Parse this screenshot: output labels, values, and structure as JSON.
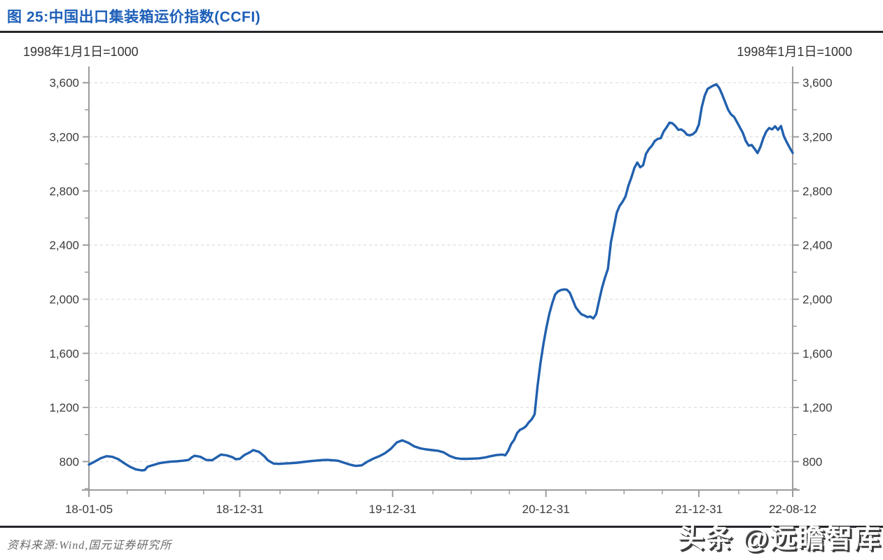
{
  "header": {
    "title": "图 25:中国出口集装箱运价指数(CCFI)"
  },
  "chart": {
    "base_note_left": "1998年1月1日=1000",
    "base_note_right": "1998年1月1日=1000"
  },
  "footer": {
    "source": "资料来源:Wind,国元证券研究所"
  },
  "watermark": {
    "text": "头条 @远瞻智库"
  },
  "chart_data": {
    "type": "line",
    "title": "中国出口集装箱运价指数(CCFI)",
    "unit_note": "1998年1月1日=1000",
    "grid": "horizontal-dashed",
    "legend": "none",
    "colors": {
      "line": "#2160ae",
      "axis": "#9c9c9c",
      "grid": "#dcdcdc",
      "tick_text": "#3c3c3c"
    },
    "ylim": [
      590,
      3720
    ],
    "y_ticks": {
      "values": [
        800,
        1200,
        1600,
        2000,
        2400,
        2800,
        3200,
        3600
      ],
      "labels": [
        "800",
        "1,200",
        "1,600",
        "2,000",
        "2,400",
        "2,800",
        "3,200",
        "3,600"
      ]
    },
    "y_minor_ticks": [
      600,
      1000,
      1400,
      1800,
      2200,
      2600,
      3000,
      3400
    ],
    "x_ticks": [
      {
        "date": "2018-01-05",
        "label": "18-01-05"
      },
      {
        "date": "2018-12-31",
        "label": "18-12-31"
      },
      {
        "date": "2019-12-31",
        "label": "19-12-31"
      },
      {
        "date": "2020-12-31",
        "label": "20-12-31"
      },
      {
        "date": "2021-12-31",
        "label": "21-12-31"
      },
      {
        "date": "2022-08-12",
        "label": "22-08-12"
      }
    ],
    "series": [
      {
        "name": "CCFI",
        "color": "#2160ae",
        "points": [
          [
            "2018-01-05",
            778
          ],
          [
            "2018-01-19",
            800
          ],
          [
            "2018-02-02",
            825
          ],
          [
            "2018-02-16",
            840
          ],
          [
            "2018-03-02",
            835
          ],
          [
            "2018-03-16",
            818
          ],
          [
            "2018-03-30",
            788
          ],
          [
            "2018-04-13",
            762
          ],
          [
            "2018-04-27",
            742
          ],
          [
            "2018-05-11",
            735
          ],
          [
            "2018-05-18",
            737
          ],
          [
            "2018-05-25",
            762
          ],
          [
            "2018-06-08",
            775
          ],
          [
            "2018-06-22",
            788
          ],
          [
            "2018-07-06",
            795
          ],
          [
            "2018-07-20",
            800
          ],
          [
            "2018-08-03",
            802
          ],
          [
            "2018-08-17",
            806
          ],
          [
            "2018-08-31",
            812
          ],
          [
            "2018-09-07",
            830
          ],
          [
            "2018-09-14",
            843
          ],
          [
            "2018-09-28",
            836
          ],
          [
            "2018-10-12",
            812
          ],
          [
            "2018-10-26",
            810
          ],
          [
            "2018-11-09",
            838
          ],
          [
            "2018-11-16",
            852
          ],
          [
            "2018-11-30",
            846
          ],
          [
            "2018-12-14",
            832
          ],
          [
            "2018-12-21",
            818
          ],
          [
            "2018-12-31",
            820
          ],
          [
            "2019-01-11",
            848
          ],
          [
            "2019-01-25",
            870
          ],
          [
            "2019-02-01",
            885
          ],
          [
            "2019-02-15",
            872
          ],
          [
            "2019-03-01",
            835
          ],
          [
            "2019-03-08",
            810
          ],
          [
            "2019-03-22",
            785
          ],
          [
            "2019-04-05",
            783
          ],
          [
            "2019-04-19",
            786
          ],
          [
            "2019-05-03",
            788
          ],
          [
            "2019-05-17",
            792
          ],
          [
            "2019-05-31",
            797
          ],
          [
            "2019-06-14",
            802
          ],
          [
            "2019-06-28",
            806
          ],
          [
            "2019-07-12",
            810
          ],
          [
            "2019-07-26",
            813
          ],
          [
            "2019-08-09",
            810
          ],
          [
            "2019-08-23",
            806
          ],
          [
            "2019-09-06",
            792
          ],
          [
            "2019-09-20",
            778
          ],
          [
            "2019-10-04",
            768
          ],
          [
            "2019-10-18",
            772
          ],
          [
            "2019-11-01",
            800
          ],
          [
            "2019-11-15",
            822
          ],
          [
            "2019-11-29",
            840
          ],
          [
            "2019-12-13",
            862
          ],
          [
            "2019-12-27",
            895
          ],
          [
            "2020-01-10",
            942
          ],
          [
            "2020-01-23",
            957
          ],
          [
            "2020-02-07",
            938
          ],
          [
            "2020-02-21",
            912
          ],
          [
            "2020-03-06",
            898
          ],
          [
            "2020-03-20",
            890
          ],
          [
            "2020-04-03",
            885
          ],
          [
            "2020-04-17",
            880
          ],
          [
            "2020-05-01",
            868
          ],
          [
            "2020-05-15",
            842
          ],
          [
            "2020-05-29",
            826
          ],
          [
            "2020-06-12",
            820
          ],
          [
            "2020-06-26",
            820
          ],
          [
            "2020-07-10",
            822
          ],
          [
            "2020-07-24",
            824
          ],
          [
            "2020-08-07",
            830
          ],
          [
            "2020-08-21",
            840
          ],
          [
            "2020-09-04",
            848
          ],
          [
            "2020-09-18",
            852
          ],
          [
            "2020-09-25",
            846
          ],
          [
            "2020-10-02",
            880
          ],
          [
            "2020-10-09",
            930
          ],
          [
            "2020-10-16",
            960
          ],
          [
            "2020-10-23",
            1010
          ],
          [
            "2020-10-30",
            1035
          ],
          [
            "2020-11-06",
            1045
          ],
          [
            "2020-11-13",
            1060
          ],
          [
            "2020-11-20",
            1090
          ],
          [
            "2020-11-27",
            1112
          ],
          [
            "2020-12-04",
            1150
          ],
          [
            "2020-12-11",
            1360
          ],
          [
            "2020-12-18",
            1530
          ],
          [
            "2020-12-25",
            1670
          ],
          [
            "2021-01-01",
            1790
          ],
          [
            "2021-01-08",
            1890
          ],
          [
            "2021-01-15",
            1970
          ],
          [
            "2021-01-22",
            2035
          ],
          [
            "2021-01-29",
            2058
          ],
          [
            "2021-02-05",
            2068
          ],
          [
            "2021-02-12",
            2072
          ],
          [
            "2021-02-19",
            2070
          ],
          [
            "2021-02-26",
            2048
          ],
          [
            "2021-03-05",
            1995
          ],
          [
            "2021-03-12",
            1942
          ],
          [
            "2021-03-19",
            1912
          ],
          [
            "2021-03-26",
            1888
          ],
          [
            "2021-04-02",
            1880
          ],
          [
            "2021-04-09",
            1868
          ],
          [
            "2021-04-16",
            1872
          ],
          [
            "2021-04-23",
            1858
          ],
          [
            "2021-04-30",
            1890
          ],
          [
            "2021-05-07",
            1990
          ],
          [
            "2021-05-14",
            2085
          ],
          [
            "2021-05-21",
            2160
          ],
          [
            "2021-05-28",
            2225
          ],
          [
            "2021-06-04",
            2420
          ],
          [
            "2021-06-11",
            2530
          ],
          [
            "2021-06-18",
            2640
          ],
          [
            "2021-06-25",
            2690
          ],
          [
            "2021-07-02",
            2720
          ],
          [
            "2021-07-09",
            2760
          ],
          [
            "2021-07-16",
            2840
          ],
          [
            "2021-07-23",
            2900
          ],
          [
            "2021-07-30",
            2970
          ],
          [
            "2021-08-06",
            3010
          ],
          [
            "2021-08-13",
            2975
          ],
          [
            "2021-08-20",
            2990
          ],
          [
            "2021-08-27",
            3075
          ],
          [
            "2021-09-03",
            3110
          ],
          [
            "2021-09-10",
            3135
          ],
          [
            "2021-09-17",
            3170
          ],
          [
            "2021-09-24",
            3185
          ],
          [
            "2021-10-01",
            3190
          ],
          [
            "2021-10-08",
            3240
          ],
          [
            "2021-10-15",
            3270
          ],
          [
            "2021-10-22",
            3305
          ],
          [
            "2021-10-29",
            3300
          ],
          [
            "2021-11-05",
            3280
          ],
          [
            "2021-11-12",
            3252
          ],
          [
            "2021-11-19",
            3255
          ],
          [
            "2021-11-26",
            3240
          ],
          [
            "2021-12-03",
            3215
          ],
          [
            "2021-12-10",
            3212
          ],
          [
            "2021-12-17",
            3220
          ],
          [
            "2021-12-24",
            3240
          ],
          [
            "2021-12-31",
            3290
          ],
          [
            "2022-01-07",
            3420
          ],
          [
            "2022-01-14",
            3505
          ],
          [
            "2022-01-21",
            3555
          ],
          [
            "2022-01-28",
            3568
          ],
          [
            "2022-02-04",
            3580
          ],
          [
            "2022-02-11",
            3588
          ],
          [
            "2022-02-18",
            3560
          ],
          [
            "2022-02-25",
            3510
          ],
          [
            "2022-03-04",
            3455
          ],
          [
            "2022-03-11",
            3400
          ],
          [
            "2022-03-18",
            3365
          ],
          [
            "2022-03-25",
            3348
          ],
          [
            "2022-04-01",
            3310
          ],
          [
            "2022-04-08",
            3270
          ],
          [
            "2022-04-15",
            3230
          ],
          [
            "2022-04-22",
            3170
          ],
          [
            "2022-04-29",
            3135
          ],
          [
            "2022-05-06",
            3140
          ],
          [
            "2022-05-13",
            3112
          ],
          [
            "2022-05-20",
            3080
          ],
          [
            "2022-05-27",
            3125
          ],
          [
            "2022-06-03",
            3190
          ],
          [
            "2022-06-10",
            3240
          ],
          [
            "2022-06-17",
            3265
          ],
          [
            "2022-06-24",
            3255
          ],
          [
            "2022-07-01",
            3278
          ],
          [
            "2022-07-08",
            3252
          ],
          [
            "2022-07-15",
            3280
          ],
          [
            "2022-07-22",
            3205
          ],
          [
            "2022-07-29",
            3160
          ],
          [
            "2022-08-05",
            3120
          ],
          [
            "2022-08-12",
            3082
          ]
        ]
      }
    ]
  }
}
